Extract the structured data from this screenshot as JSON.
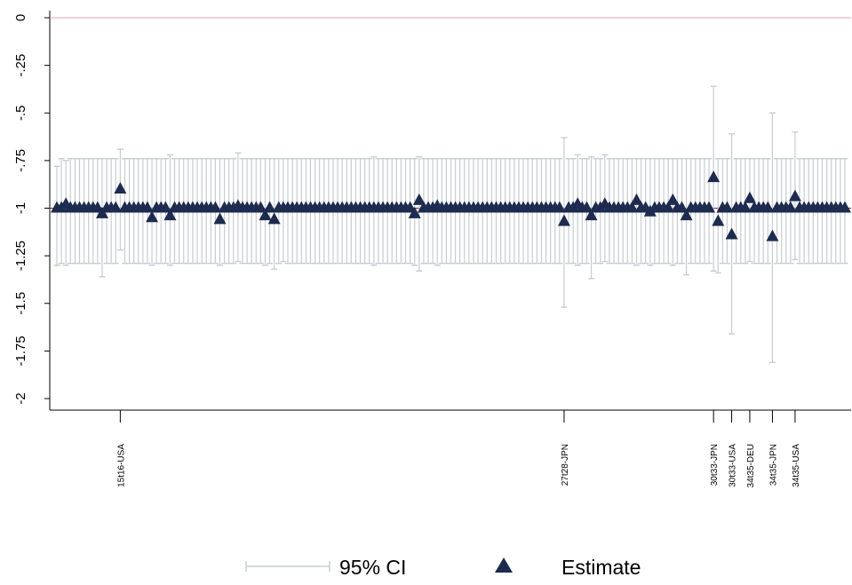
{
  "chart_data": {
    "type": "scatter",
    "ylim": [
      -2.1,
      0.05
    ],
    "yticks": [
      {
        "v": 0,
        "label": "0"
      },
      {
        "v": -0.25,
        "label": "-.25"
      },
      {
        "v": -0.5,
        "label": "-.5"
      },
      {
        "v": -0.75,
        "label": "-.75"
      },
      {
        "v": -1,
        "label": "-1"
      },
      {
        "v": -1.25,
        "label": "-1.25"
      },
      {
        "v": -1.5,
        "label": "-1.5"
      },
      {
        "v": -1.75,
        "label": "-1.75"
      },
      {
        "v": -2,
        "label": "-2"
      }
    ],
    "reference_lines": [
      {
        "y": 0,
        "color": "#e8a0b0"
      },
      {
        "y": -1,
        "color": "#8b1a1a"
      }
    ],
    "n_items": 175,
    "default_estimate": -1.0,
    "default_ci": [
      -1.29,
      -0.74
    ],
    "labeled_ticks": [
      {
        "index": 14,
        "label": "15t16-USA"
      },
      {
        "index": 112,
        "label": "27t28-JPN"
      },
      {
        "index": 145,
        "label": "30t33-JPN"
      },
      {
        "index": 149,
        "label": "30t33-USA"
      },
      {
        "index": 153,
        "label": "34t35-DEU"
      },
      {
        "index": 158,
        "label": "34t35-JPN"
      },
      {
        "index": 163,
        "label": "34t35-USA"
      }
    ],
    "notable_points": [
      {
        "index": 0,
        "estimate": -1.0,
        "ci": [
          -1.3,
          -0.78
        ]
      },
      {
        "index": 2,
        "estimate": -0.98,
        "ci": [
          -1.3,
          -0.75
        ]
      },
      {
        "index": 10,
        "estimate": -1.03,
        "ci": [
          -1.36,
          -0.74
        ]
      },
      {
        "index": 14,
        "estimate": -0.9,
        "ci": [
          -1.22,
          -0.69
        ]
      },
      {
        "index": 21,
        "estimate": -1.05,
        "ci": [
          -1.3,
          -0.74
        ]
      },
      {
        "index": 25,
        "estimate": -1.04,
        "ci": [
          -1.3,
          -0.72
        ]
      },
      {
        "index": 36,
        "estimate": -1.06,
        "ci": [
          -1.3,
          -0.74
        ]
      },
      {
        "index": 40,
        "estimate": -0.99,
        "ci": [
          -1.28,
          -0.71
        ]
      },
      {
        "index": 46,
        "estimate": -1.04,
        "ci": [
          -1.3,
          -0.74
        ]
      },
      {
        "index": 48,
        "estimate": -1.06,
        "ci": [
          -1.32,
          -0.74
        ]
      },
      {
        "index": 50,
        "estimate": -1.0,
        "ci": [
          -1.28,
          -0.74
        ]
      },
      {
        "index": 70,
        "estimate": -1.0,
        "ci": [
          -1.3,
          -0.73
        ]
      },
      {
        "index": 79,
        "estimate": -1.03,
        "ci": [
          -1.3,
          -0.74
        ]
      },
      {
        "index": 80,
        "estimate": -0.96,
        "ci": [
          -1.33,
          -0.73
        ]
      },
      {
        "index": 84,
        "estimate": -0.99,
        "ci": [
          -1.3,
          -0.74
        ]
      },
      {
        "index": 112,
        "estimate": -1.07,
        "ci": [
          -1.52,
          -0.63
        ]
      },
      {
        "index": 115,
        "estimate": -0.98,
        "ci": [
          -1.3,
          -0.72
        ]
      },
      {
        "index": 118,
        "estimate": -1.04,
        "ci": [
          -1.37,
          -0.73
        ]
      },
      {
        "index": 121,
        "estimate": -0.98,
        "ci": [
          -1.28,
          -0.72
        ]
      },
      {
        "index": 128,
        "estimate": -0.96,
        "ci": [
          -1.3,
          -0.74
        ]
      },
      {
        "index": 131,
        "estimate": -1.02,
        "ci": [
          -1.3,
          -0.74
        ]
      },
      {
        "index": 136,
        "estimate": -0.96,
        "ci": [
          -1.3,
          -0.74
        ]
      },
      {
        "index": 139,
        "estimate": -1.04,
        "ci": [
          -1.35,
          -0.74
        ]
      },
      {
        "index": 145,
        "estimate": -0.84,
        "ci": [
          -1.33,
          -0.36
        ]
      },
      {
        "index": 146,
        "estimate": -1.07,
        "ci": [
          -1.34,
          -0.74
        ]
      },
      {
        "index": 149,
        "estimate": -1.14,
        "ci": [
          -1.66,
          -0.61
        ]
      },
      {
        "index": 153,
        "estimate": -0.95,
        "ci": [
          -1.28,
          -0.74
        ]
      },
      {
        "index": 158,
        "estimate": -1.15,
        "ci": [
          -1.81,
          -0.5
        ]
      },
      {
        "index": 163,
        "estimate": -0.94,
        "ci": [
          -1.27,
          -0.6
        ]
      }
    ],
    "legend": [
      {
        "label": "95% CI",
        "symbol": "ci-bar",
        "color": "#c8ccd2"
      },
      {
        "label": "Estimate",
        "symbol": "triangle",
        "color": "#1c2b4f"
      }
    ],
    "legend_position": "bottom-center",
    "colors": {
      "ci": "#c8ccd2",
      "estimate": "#1c2b4f"
    }
  }
}
